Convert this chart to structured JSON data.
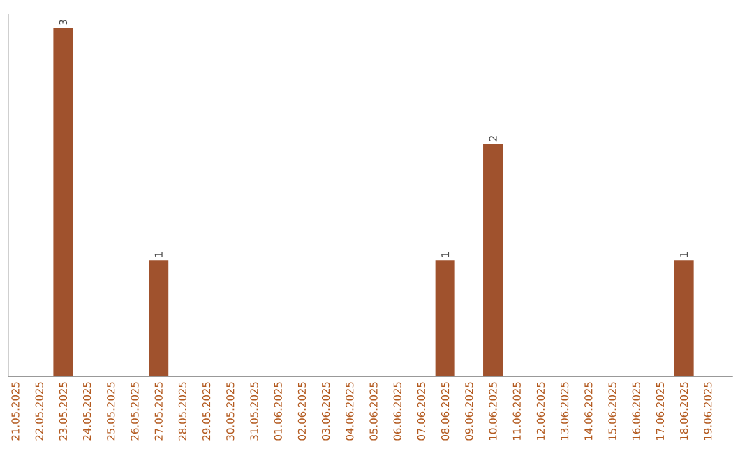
{
  "chart_data": {
    "type": "bar",
    "categories": [
      "21.05.2025",
      "22.05.2025",
      "23.05.2025",
      "24.05.2025",
      "25.05.2025",
      "26.05.2025",
      "27.05.2025",
      "28.05.2025",
      "29.05.2025",
      "30.05.2025",
      "31.05.2025",
      "01.06.2025",
      "02.06.2025",
      "03.06.2025",
      "04.06.2025",
      "05.06.2025",
      "06.06.2025",
      "07.06.2025",
      "08.06.2025",
      "09.06.2025",
      "10.06.2025",
      "11.06.2025",
      "12.06.2025",
      "13.06.2025",
      "14.06.2025",
      "15.06.2025",
      "16.06.2025",
      "17.06.2025",
      "18.06.2025",
      "19.06.2025"
    ],
    "values": [
      0,
      0,
      3,
      0,
      0,
      0,
      1,
      0,
      0,
      0,
      0,
      0,
      0,
      0,
      0,
      0,
      0,
      0,
      1,
      0,
      2,
      0,
      0,
      0,
      0,
      0,
      0,
      0,
      1,
      0
    ],
    "value_labels": [
      null,
      null,
      "3",
      null,
      null,
      null,
      "1",
      null,
      null,
      null,
      null,
      null,
      null,
      null,
      null,
      null,
      null,
      null,
      "1",
      null,
      "2",
      null,
      null,
      null,
      null,
      null,
      null,
      null,
      "1",
      null
    ],
    "color": "#a0522d",
    "ylim": [
      0,
      3.12
    ],
    "tick_labels": "x",
    "grid": false
  }
}
